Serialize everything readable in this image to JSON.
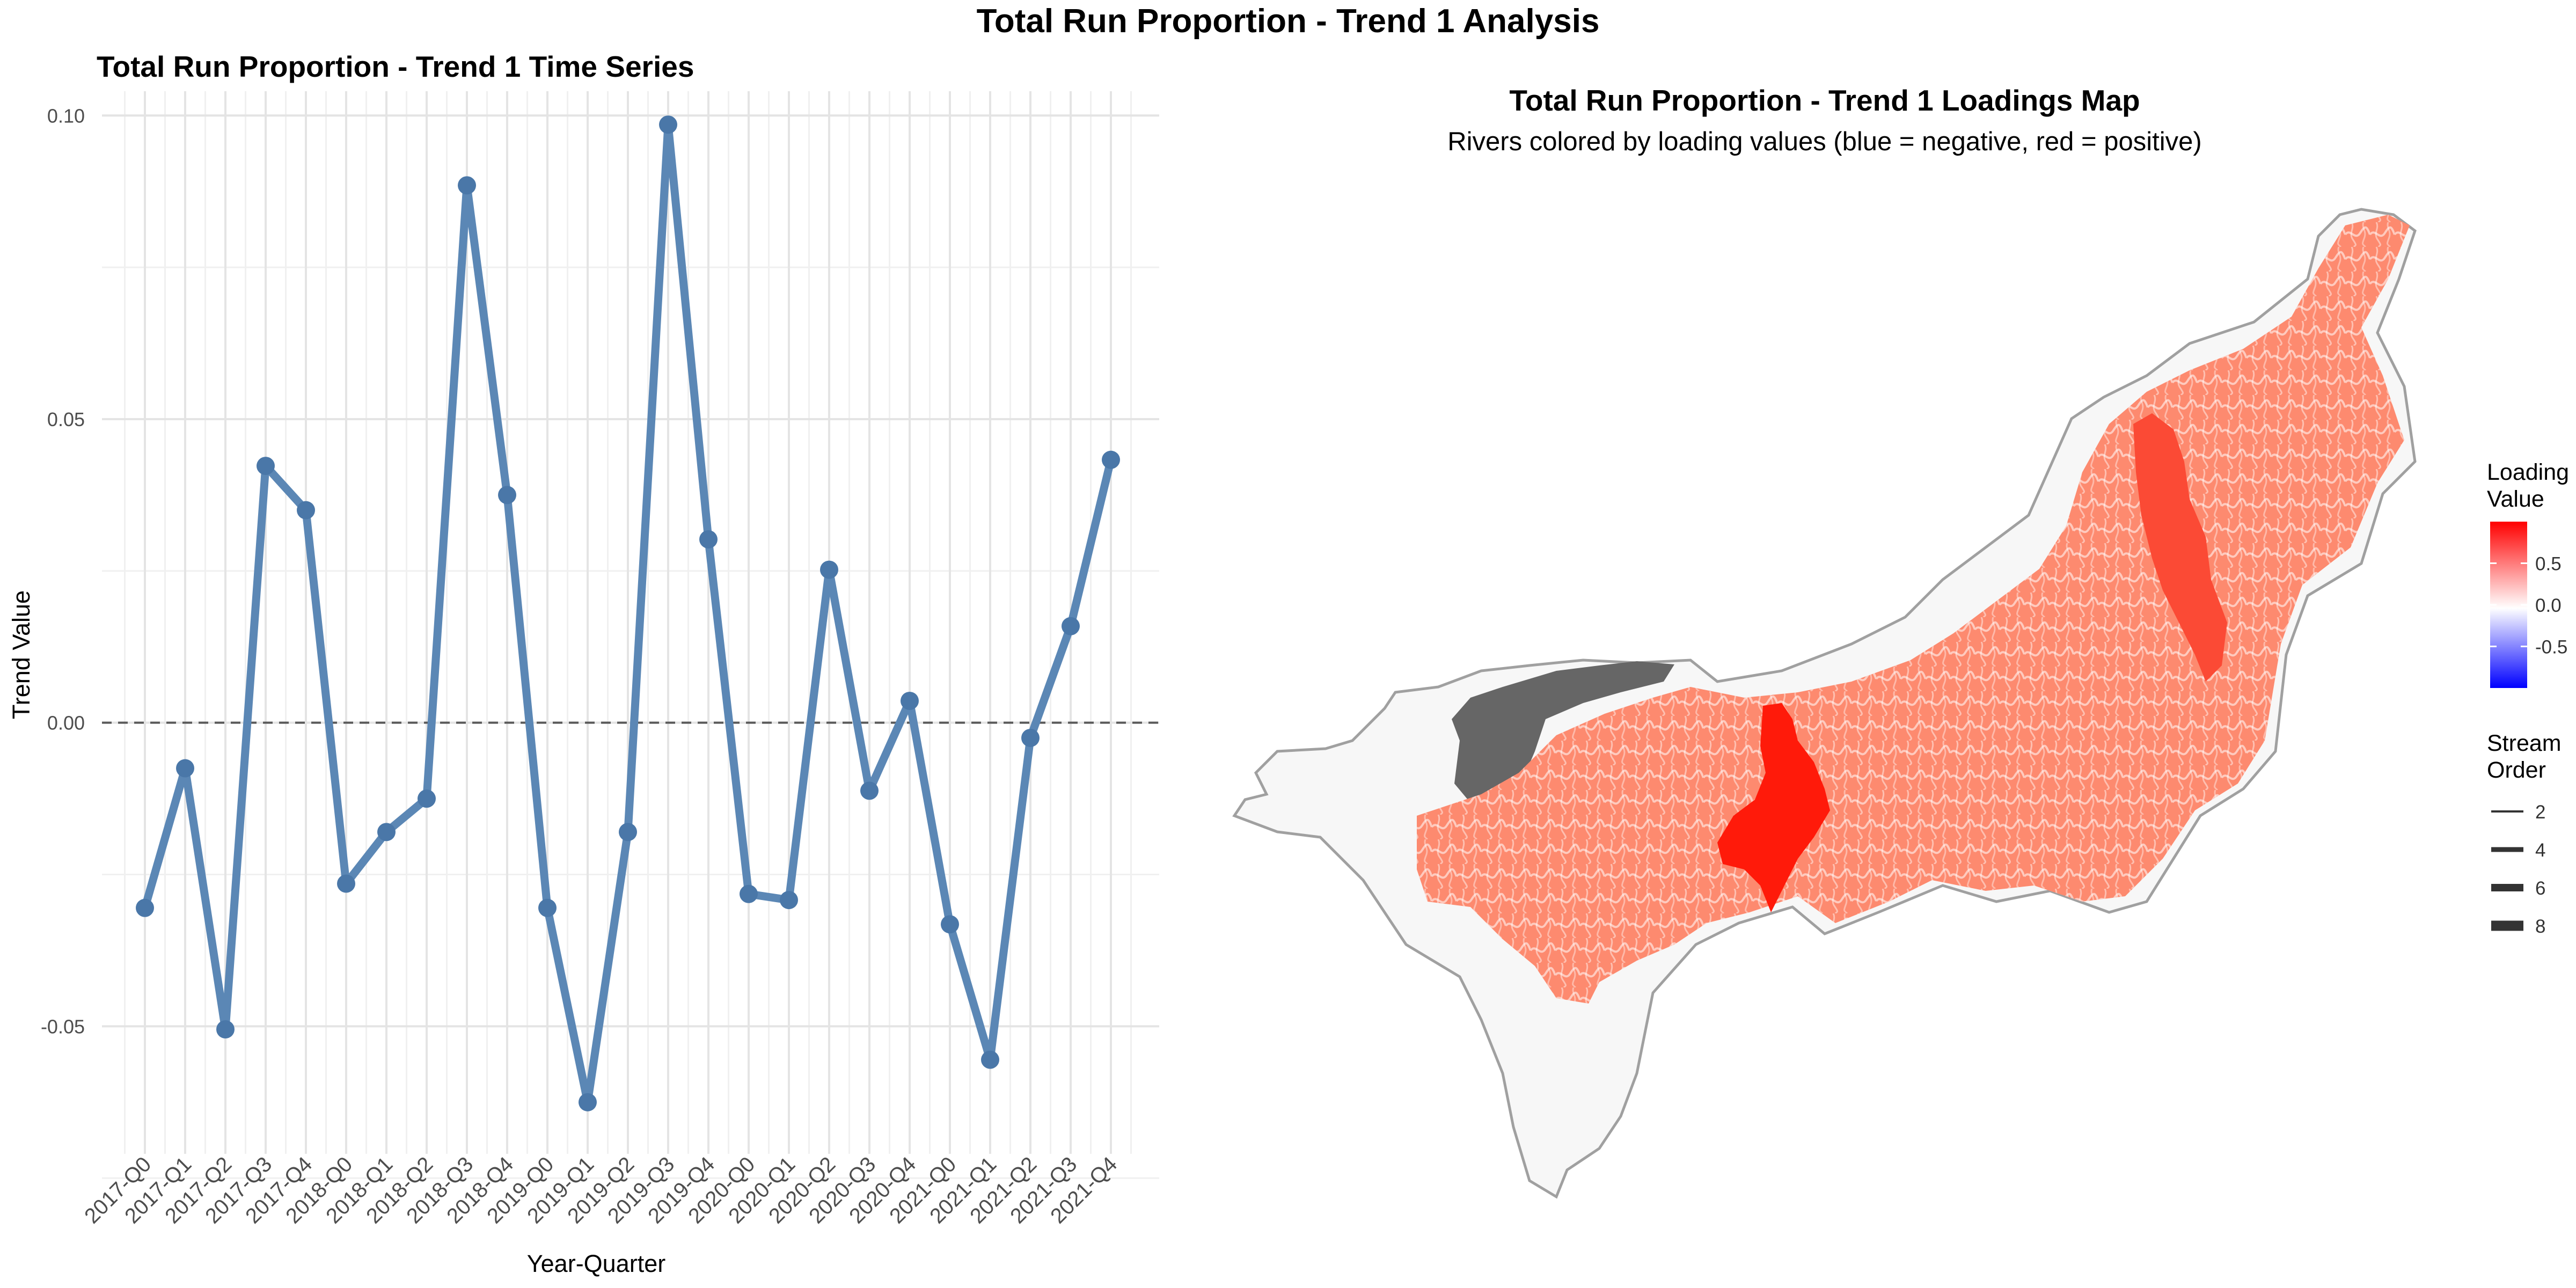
{
  "figure_title": "Total Run Proportion - Trend 1 Analysis",
  "chart_data": [
    {
      "type": "line",
      "title": "Total Run Proportion - Trend 1 Time Series",
      "xlabel": "Year-Quarter",
      "ylabel": "Trend Value",
      "categories": [
        "2017-Q0",
        "2017-Q1",
        "2017-Q2",
        "2017-Q3",
        "2017-Q4",
        "2018-Q0",
        "2018-Q1",
        "2018-Q2",
        "2018-Q3",
        "2018-Q4",
        "2019-Q0",
        "2019-Q1",
        "2019-Q2",
        "2019-Q3",
        "2019-Q4",
        "2020-Q0",
        "2020-Q1",
        "2020-Q2",
        "2020-Q3",
        "2020-Q4",
        "2021-Q0",
        "2021-Q1",
        "2021-Q2",
        "2021-Q3",
        "2021-Q4"
      ],
      "series": [
        {
          "values": [
            -0.0305,
            -0.0075,
            -0.0505,
            0.0423,
            0.035,
            -0.0265,
            -0.018,
            -0.0125,
            0.0885,
            0.0375,
            -0.0305,
            -0.0625,
            -0.018,
            0.0985,
            0.0302,
            -0.0282,
            -0.0292,
            0.0252,
            -0.0112,
            0.0036,
            -0.0332,
            -0.0555,
            -0.0025,
            0.0159,
            0.0433
          ]
        }
      ],
      "yticks": [
        "-0.05",
        "0.00",
        "0.05",
        "0.10"
      ],
      "ytick_values": [
        -0.05,
        0,
        0.05,
        0.1
      ],
      "ylim": [
        -0.071,
        0.104
      ],
      "reference_line": 0,
      "grid": true,
      "line_color": "#5b87b5",
      "point_color": "#4a77a8"
    },
    {
      "type": "map",
      "title": "Total Run Proportion - Trend 1 Loadings Map",
      "subtitle": "Rivers colored by loading values (blue = negative, red = positive)",
      "legend_loading": {
        "title_line1": "Loading",
        "title_line2": "Value",
        "ticks": [
          "0.5",
          "0.0",
          "-0.5"
        ],
        "tick_values": [
          0.5,
          0.0,
          -0.5
        ],
        "color_high": "#ff0000",
        "color_mid": "#ffffff",
        "color_low": "#0000ff"
      },
      "legend_stream": {
        "title_line1": "Stream",
        "title_line2": "Order",
        "items": [
          "2",
          "4",
          "6",
          "8"
        ]
      },
      "colors": {
        "basin_fill": "#f7f7f7",
        "basin_outline": "#a0a0a0",
        "river_main": "#fd8a6f",
        "river_dark_red": "#ff1a0a",
        "river_orange_red": "#fb4a35",
        "river_gray": "#666666"
      }
    }
  ]
}
